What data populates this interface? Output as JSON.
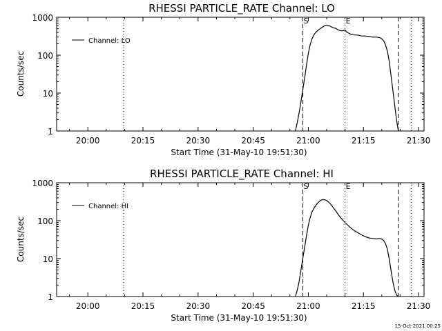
{
  "footer": {
    "timestamp": "15-Oct-2021 00:25"
  },
  "chart_data": [
    {
      "type": "line",
      "title": "RHESSI PARTICLE_RATE Channel: LO",
      "legend": "Channel: LO",
      "xlabel": "Start Time (31-May-10 19:51:30)",
      "ylabel": "Counts/sec",
      "yscale": "log",
      "ylim": [
        1,
        1000
      ],
      "xlim_minutes_after_start": [
        0,
        100
      ],
      "x_ticks": [
        {
          "label": "20:00",
          "minutes": 8.5
        },
        {
          "label": "20:15",
          "minutes": 23.5
        },
        {
          "label": "20:30",
          "minutes": 38.5
        },
        {
          "label": "20:45",
          "minutes": 53.5
        },
        {
          "label": "21:00",
          "minutes": 68.5
        },
        {
          "label": "21:15",
          "minutes": 83.5
        },
        {
          "label": "21:30",
          "minutes": 98.5
        }
      ],
      "y_ticks": [
        {
          "label": "1",
          "value": 1
        },
        {
          "label": "10",
          "value": 10
        },
        {
          "label": "100",
          "value": 100
        },
        {
          "label": "1000",
          "value": 1000
        }
      ],
      "markers": [
        {
          "minutes": 18.2,
          "style": "dotted",
          "label": ""
        },
        {
          "minutes": 67.0,
          "style": "dashed",
          "label": "S"
        },
        {
          "minutes": 78.5,
          "style": "dotted",
          "label": "E"
        },
        {
          "minutes": 93.0,
          "style": "dashed",
          "label": ""
        },
        {
          "minutes": 96.5,
          "style": "dotted",
          "label": ""
        }
      ],
      "series": [
        {
          "name": "Channel: LO",
          "x": [
            65.0,
            65.5,
            66.0,
            66.5,
            67.0,
            67.5,
            68.0,
            68.5,
            69.0,
            69.5,
            70.0,
            70.5,
            71.0,
            71.5,
            72.0,
            72.5,
            73.0,
            73.5,
            74.0,
            74.5,
            75.0,
            75.5,
            76.0,
            76.5,
            77.0,
            77.5,
            78.0,
            78.5,
            79.0,
            79.5,
            80.0,
            81.0,
            82.0,
            83.0,
            84.0,
            85.0,
            86.0,
            87.0,
            88.0,
            88.5,
            89.0,
            89.5,
            90.0,
            90.5,
            91.0,
            91.5,
            92.0,
            92.5,
            93.0
          ],
          "y": [
            1.0,
            1.7,
            3,
            6,
            12,
            25,
            55,
            110,
            190,
            270,
            340,
            400,
            440,
            480,
            520,
            560,
            600,
            620,
            600,
            580,
            540,
            520,
            510,
            470,
            450,
            440,
            440,
            460,
            400,
            380,
            360,
            340,
            340,
            320,
            320,
            310,
            300,
            300,
            290,
            270,
            240,
            190,
            130,
            70,
            30,
            12,
            5,
            2,
            1.0
          ]
        }
      ]
    },
    {
      "type": "line",
      "title": "RHESSI PARTICLE_RATE Channel: HI",
      "legend": "Channel: HI",
      "xlabel": "Start Time (31-May-10 19:51:30)",
      "ylabel": "Counts/sec",
      "yscale": "log",
      "ylim": [
        1,
        1000
      ],
      "xlim_minutes_after_start": [
        0,
        100
      ],
      "x_ticks": [
        {
          "label": "20:00",
          "minutes": 8.5
        },
        {
          "label": "20:15",
          "minutes": 23.5
        },
        {
          "label": "20:30",
          "minutes": 38.5
        },
        {
          "label": "20:45",
          "minutes": 53.5
        },
        {
          "label": "21:00",
          "minutes": 68.5
        },
        {
          "label": "21:15",
          "minutes": 83.5
        },
        {
          "label": "21:30",
          "minutes": 98.5
        }
      ],
      "y_ticks": [
        {
          "label": "1",
          "value": 1
        },
        {
          "label": "10",
          "value": 10
        },
        {
          "label": "100",
          "value": 100
        },
        {
          "label": "1000",
          "value": 1000
        }
      ],
      "markers": [
        {
          "minutes": 18.2,
          "style": "dotted",
          "label": ""
        },
        {
          "minutes": 67.0,
          "style": "dashed",
          "label": "S"
        },
        {
          "minutes": 78.5,
          "style": "dotted",
          "label": "E"
        },
        {
          "minutes": 93.0,
          "style": "dashed",
          "label": ""
        },
        {
          "minutes": 96.5,
          "style": "dotted",
          "label": ""
        }
      ],
      "series": [
        {
          "name": "Channel: HI",
          "x": [
            65.0,
            65.5,
            66.0,
            66.5,
            67.0,
            67.5,
            68.0,
            68.5,
            69.0,
            69.5,
            70.0,
            70.5,
            71.0,
            71.5,
            72.0,
            72.5,
            73.0,
            73.5,
            74.0,
            74.5,
            75.0,
            76.0,
            77.0,
            78.0,
            79.0,
            80.0,
            81.0,
            82.0,
            83.0,
            84.0,
            85.0,
            86.0,
            87.0,
            88.0,
            88.5,
            89.0,
            89.5,
            90.0,
            90.5,
            91.0,
            91.5,
            92.0,
            92.5,
            93.0
          ],
          "y": [
            1.0,
            1.5,
            2.5,
            5,
            10,
            20,
            40,
            75,
            120,
            170,
            210,
            250,
            290,
            320,
            350,
            360,
            355,
            340,
            310,
            280,
            240,
            180,
            130,
            100,
            80,
            65,
            55,
            48,
            42,
            38,
            35,
            34,
            33,
            34,
            33,
            30,
            25,
            18,
            10,
            5,
            2.5,
            1.5,
            1.1,
            1.0
          ]
        }
      ]
    }
  ]
}
